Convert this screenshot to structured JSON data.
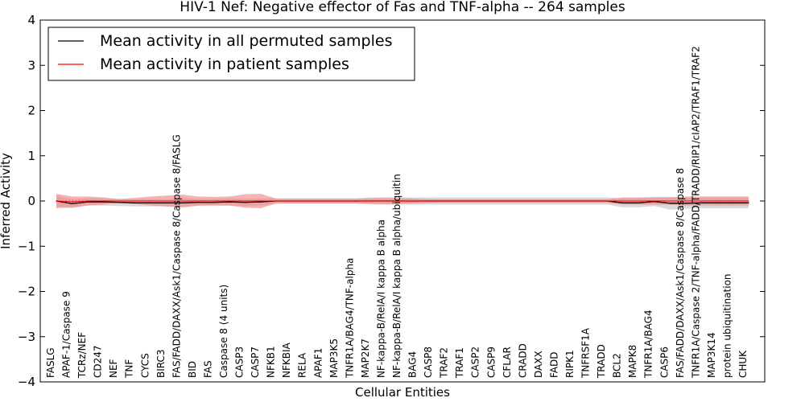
{
  "chart_data": {
    "type": "line",
    "title": "HIV-1 Nef: Negative effector of Fas and TNF-alpha -- 264 samples",
    "xlabel": "Cellular Entities",
    "ylabel": "Inferred Activity",
    "ylim": [
      -4,
      4
    ],
    "yticks": [
      -4,
      -3,
      -2,
      -1,
      0,
      1,
      2,
      3,
      4
    ],
    "ytick_labels": [
      "−4",
      "−3",
      "−2",
      "−1",
      "0",
      "1",
      "2",
      "3",
      "4"
    ],
    "categories": [
      "FASLG",
      "APAF-1/Caspase 9",
      "TCRz/NEF",
      "CD247",
      "NEF",
      "TNF",
      "CYCS",
      "BIRC3",
      "FAS/FADD/DAXX/Ask1/Caspase 8/Caspase 8/FASLG",
      "BID",
      "FAS",
      "Caspase 8 (4 units)",
      "CASP3",
      "CASP7",
      "NFKB1",
      "NFKBIA",
      "RELA",
      "APAF1",
      "MAP3K5",
      "TNFR1A/BAG4/TNF-alpha",
      "MAP2K7",
      "NF-kappa-B/RelA/I kappa B alpha",
      "NF-kappa-B/RelA/I kappa B alpha/ubiquitin",
      "BAG4",
      "CASP8",
      "TRAF2",
      "TRAF1",
      "CASP2",
      "CASP9",
      "CFLAR",
      "CRADD",
      "DAXX",
      "FADD",
      "RIPK1",
      "TNFRSF1A",
      "TRADD",
      "BCL2",
      "MAPK8",
      "TNFR1A/BAG4",
      "CASP6",
      "FAS/FADD/DAXX/Ask1/Caspase 8/Caspase 8",
      "TNFR1A/Caspase 2/TNF-alpha/FADD/TRADD/RIP1/cIAP2/TRAF1/TRAF2",
      "MAP3K14",
      "protein ubiquitination",
      "CHUK"
    ],
    "series": [
      {
        "name": "Mean activity in all permuted samples",
        "color": "#000000",
        "band_color": "#bbbbbb",
        "values": [
          0.0,
          -0.06,
          -0.02,
          -0.02,
          -0.03,
          -0.04,
          -0.04,
          -0.04,
          -0.04,
          -0.03,
          -0.03,
          -0.02,
          -0.03,
          -0.02,
          0.0,
          0.0,
          0.0,
          0.0,
          0.0,
          0.0,
          0.0,
          0.0,
          0.0,
          0.0,
          0.0,
          0.0,
          0.0,
          0.0,
          0.0,
          0.0,
          0.0,
          0.0,
          0.0,
          0.0,
          0.0,
          0.0,
          -0.04,
          -0.04,
          -0.01,
          -0.05,
          -0.05,
          -0.04,
          -0.04,
          -0.04,
          -0.04
        ],
        "band": [
          0.12,
          0.1,
          0.08,
          0.08,
          0.08,
          0.08,
          0.08,
          0.08,
          0.1,
          0.08,
          0.08,
          0.08,
          0.08,
          0.08,
          0.06,
          0.06,
          0.06,
          0.06,
          0.06,
          0.06,
          0.08,
          0.08,
          0.08,
          0.08,
          0.08,
          0.08,
          0.08,
          0.08,
          0.08,
          0.08,
          0.08,
          0.08,
          0.08,
          0.08,
          0.08,
          0.08,
          0.1,
          0.1,
          0.1,
          0.14,
          0.12,
          0.12,
          0.12,
          0.12,
          0.12
        ]
      },
      {
        "name": "Mean activity in patient samples",
        "color": "#ff0000",
        "band_color": "#f08080",
        "values": [
          0.0,
          -0.02,
          0.0,
          0.0,
          0.0,
          0.0,
          0.0,
          0.0,
          0.0,
          0.0,
          0.0,
          0.0,
          0.0,
          0.0,
          0.0,
          0.0,
          0.0,
          0.0,
          0.0,
          0.0,
          0.0,
          0.0,
          0.0,
          0.0,
          0.0,
          0.0,
          0.0,
          0.0,
          0.0,
          0.0,
          0.0,
          0.0,
          0.0,
          0.0,
          0.0,
          0.0,
          0.0,
          0.0,
          0.0,
          0.0,
          0.0,
          0.0,
          0.0,
          0.0,
          0.0
        ],
        "band": [
          0.16,
          0.12,
          0.1,
          0.08,
          0.04,
          0.07,
          0.1,
          0.12,
          0.14,
          0.1,
          0.09,
          0.1,
          0.15,
          0.16,
          0.05,
          0.05,
          0.05,
          0.05,
          0.05,
          0.05,
          0.06,
          0.07,
          0.06,
          0.05,
          0.04,
          0.04,
          0.04,
          0.04,
          0.04,
          0.04,
          0.04,
          0.04,
          0.04,
          0.04,
          0.04,
          0.04,
          0.08,
          0.08,
          0.08,
          0.08,
          0.1,
          0.1,
          0.1,
          0.1,
          0.1
        ]
      }
    ],
    "legend": "top-left",
    "grid": false
  }
}
